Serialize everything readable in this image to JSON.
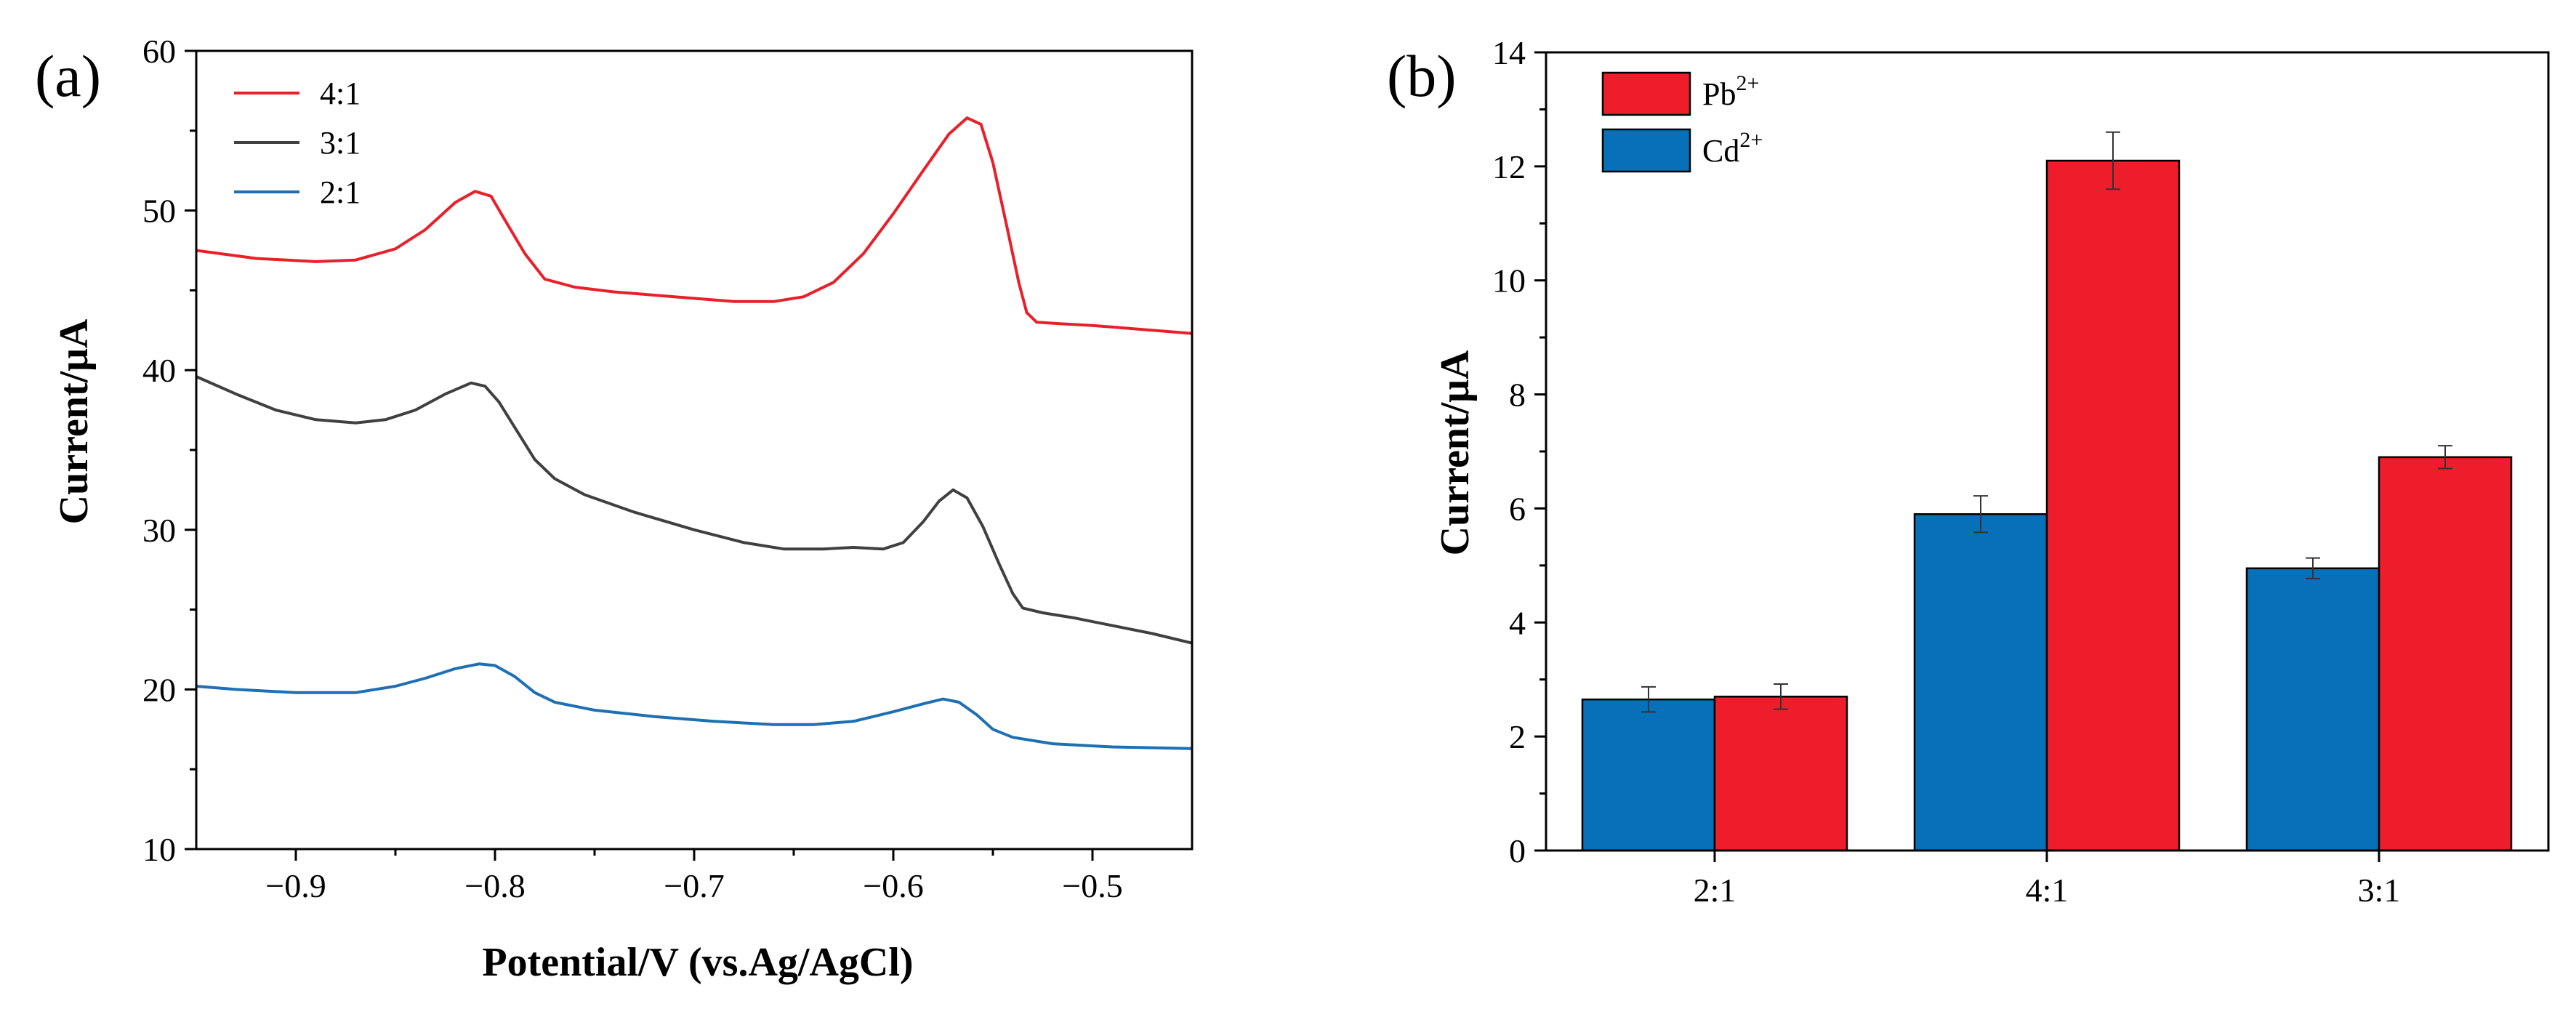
{
  "chart_data": [
    {
      "panel_label": "(a)",
      "type": "line",
      "title": "",
      "xlabel": "Potential/V (vs.Ag/AgCl)",
      "ylabel": "Current/μA",
      "xlim": [
        -0.95,
        -0.45
      ],
      "ylim": [
        10,
        60
      ],
      "xticks": [
        -0.9,
        -0.8,
        -0.7,
        -0.6,
        -0.5
      ],
      "xtick_labels": [
        "−0.9",
        "−0.8",
        "−0.7",
        "−0.6",
        "−0.5"
      ],
      "yticks": [
        10,
        20,
        30,
        40,
        50,
        60
      ],
      "ytick_labels": [
        "10",
        "20",
        "30",
        "40",
        "50",
        "60"
      ],
      "legend_position": "top-left",
      "series": [
        {
          "name": "4:1",
          "color": "#e8202a",
          "points": [
            [
              -0.95,
              47.5
            ],
            [
              -0.92,
              47.0
            ],
            [
              -0.89,
              46.8
            ],
            [
              -0.87,
              46.9
            ],
            [
              -0.85,
              47.6
            ],
            [
              -0.835,
              48.8
            ],
            [
              -0.82,
              50.5
            ],
            [
              -0.81,
              51.2
            ],
            [
              -0.802,
              50.9
            ],
            [
              -0.795,
              49.4
            ],
            [
              -0.785,
              47.3
            ],
            [
              -0.775,
              45.7
            ],
            [
              -0.76,
              45.2
            ],
            [
              -0.74,
              44.9
            ],
            [
              -0.71,
              44.6
            ],
            [
              -0.68,
              44.3
            ],
            [
              -0.66,
              44.3
            ],
            [
              -0.645,
              44.6
            ],
            [
              -0.63,
              45.5
            ],
            [
              -0.615,
              47.3
            ],
            [
              -0.6,
              49.8
            ],
            [
              -0.585,
              52.5
            ],
            [
              -0.572,
              54.8
            ],
            [
              -0.563,
              55.8
            ],
            [
              -0.556,
              55.4
            ],
            [
              -0.55,
              53.0
            ],
            [
              -0.543,
              49.0
            ],
            [
              -0.537,
              45.5
            ],
            [
              -0.533,
              43.6
            ],
            [
              -0.528,
              43.0
            ],
            [
              -0.515,
              42.9
            ],
            [
              -0.5,
              42.8
            ],
            [
              -0.48,
              42.6
            ],
            [
              -0.46,
              42.4
            ],
            [
              -0.45,
              42.3
            ]
          ]
        },
        {
          "name": "3:1",
          "color": "#404040",
          "points": [
            [
              -0.95,
              39.6
            ],
            [
              -0.93,
              38.5
            ],
            [
              -0.91,
              37.5
            ],
            [
              -0.89,
              36.9
            ],
            [
              -0.87,
              36.7
            ],
            [
              -0.855,
              36.9
            ],
            [
              -0.84,
              37.5
            ],
            [
              -0.825,
              38.5
            ],
            [
              -0.812,
              39.2
            ],
            [
              -0.805,
              39.0
            ],
            [
              -0.798,
              38.0
            ],
            [
              -0.79,
              36.4
            ],
            [
              -0.78,
              34.4
            ],
            [
              -0.77,
              33.2
            ],
            [
              -0.755,
              32.2
            ],
            [
              -0.73,
              31.1
            ],
            [
              -0.7,
              30.0
            ],
            [
              -0.675,
              29.2
            ],
            [
              -0.655,
              28.8
            ],
            [
              -0.635,
              28.8
            ],
            [
              -0.62,
              28.9
            ],
            [
              -0.605,
              28.8
            ],
            [
              -0.595,
              29.2
            ],
            [
              -0.585,
              30.5
            ],
            [
              -0.577,
              31.8
            ],
            [
              -0.57,
              32.5
            ],
            [
              -0.563,
              32.0
            ],
            [
              -0.555,
              30.2
            ],
            [
              -0.547,
              27.9
            ],
            [
              -0.54,
              26.0
            ],
            [
              -0.535,
              25.1
            ],
            [
              -0.525,
              24.8
            ],
            [
              -0.51,
              24.5
            ],
            [
              -0.49,
              24.0
            ],
            [
              -0.47,
              23.5
            ],
            [
              -0.45,
              22.9
            ]
          ]
        },
        {
          "name": "2:1",
          "color": "#1f6fb4",
          "points": [
            [
              -0.95,
              20.2
            ],
            [
              -0.93,
              20.0
            ],
            [
              -0.9,
              19.8
            ],
            [
              -0.87,
              19.8
            ],
            [
              -0.85,
              20.2
            ],
            [
              -0.835,
              20.7
            ],
            [
              -0.82,
              21.3
            ],
            [
              -0.808,
              21.6
            ],
            [
              -0.8,
              21.5
            ],
            [
              -0.79,
              20.8
            ],
            [
              -0.78,
              19.8
            ],
            [
              -0.77,
              19.2
            ],
            [
              -0.75,
              18.7
            ],
            [
              -0.72,
              18.3
            ],
            [
              -0.69,
              18.0
            ],
            [
              -0.66,
              17.8
            ],
            [
              -0.64,
              17.8
            ],
            [
              -0.62,
              18.0
            ],
            [
              -0.6,
              18.6
            ],
            [
              -0.585,
              19.1
            ],
            [
              -0.575,
              19.4
            ],
            [
              -0.567,
              19.2
            ],
            [
              -0.558,
              18.4
            ],
            [
              -0.55,
              17.5
            ],
            [
              -0.54,
              17.0
            ],
            [
              -0.52,
              16.6
            ],
            [
              -0.49,
              16.4
            ],
            [
              -0.45,
              16.3
            ]
          ]
        }
      ]
    },
    {
      "panel_label": "(b)",
      "type": "bar",
      "title": "",
      "xlabel": "",
      "ylabel": "Current/μA",
      "ylim": [
        0,
        14
      ],
      "yticks": [
        0,
        2,
        4,
        6,
        8,
        10,
        12,
        14
      ],
      "ytick_labels": [
        "0",
        "2",
        "4",
        "6",
        "8",
        "10",
        "12",
        "14"
      ],
      "categories": [
        "2:1",
        "4:1",
        "3:1"
      ],
      "legend_position": "top-left",
      "legend": [
        {
          "base": "Pb",
          "sup": "2+",
          "color": "#ee1d2b"
        },
        {
          "base": "Cd",
          "sup": "2+",
          "color": "#0670b8"
        }
      ],
      "series": [
        {
          "name": "Cd2+",
          "color": "#0670b8",
          "values": [
            2.65,
            5.9,
            4.95
          ],
          "errors": [
            0.22,
            0.32,
            0.18
          ]
        },
        {
          "name": "Pb2+",
          "color": "#ee1d2b",
          "values": [
            2.7,
            12.1,
            6.9
          ],
          "errors": [
            0.22,
            0.5,
            0.2
          ]
        }
      ]
    }
  ]
}
